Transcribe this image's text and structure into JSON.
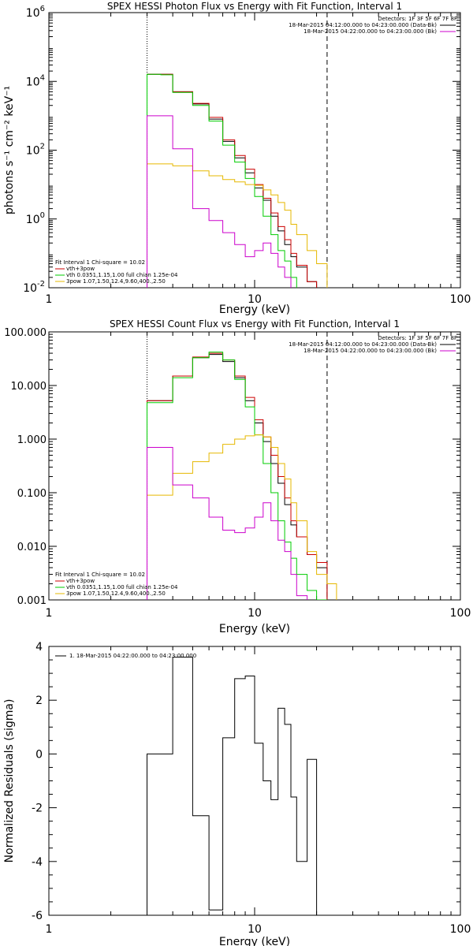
{
  "chart_data": [
    {
      "type": "line",
      "title": "SPEX HESSI Photon Flux vs Energy with Fit Function, Interval 1",
      "xlabel": "Energy (keV)",
      "ylabel": "photons s⁻¹ cm⁻² keV⁻¹",
      "xscale": "log",
      "yscale": "log",
      "xlim": [
        1,
        100
      ],
      "ylim": [
        0.01,
        1000000
      ],
      "xticks": [
        {
          "v": 1,
          "label": "1"
        },
        {
          "v": 10,
          "label": "10"
        },
        {
          "v": 100,
          "label": "100"
        }
      ],
      "yticks": [
        {
          "v": 0.01,
          "base": "10",
          "exp": "-2"
        },
        {
          "v": 1,
          "base": "10",
          "exp": "0"
        },
        {
          "v": 100,
          "base": "10",
          "exp": "2"
        },
        {
          "v": 10000,
          "base": "10",
          "exp": "4"
        },
        {
          "v": 1000000,
          "base": "10",
          "exp": "6"
        }
      ],
      "vlines": [
        {
          "x": 3.0,
          "style": "dotted"
        },
        {
          "x": 22.5,
          "style": "dashed"
        }
      ],
      "legend_top": [
        "Detectors: 1F 3F 5F 6F 7F 8F",
        "18-Mar-2015 04:12:00.000 to 04:23:00.000 (Data-Bk)",
        "18-Mar-2015 04:22:00.000 to 04:23:00.000 (Bk)"
      ],
      "legend_bottom_header": "Fit Interval 1    Chi-square = 10.02",
      "legend_bottom": [
        "vth+3pow",
        "vth 0.0351,1.15,1.00  full chian 1.25e-04",
        "3pow 1.07,1.50,12.4,9.60,400.,2.50"
      ],
      "edges": [
        3.0,
        3.5,
        4.0,
        5.0,
        6.0,
        7.0,
        8.0,
        9.0,
        10.0,
        11.0,
        12.0,
        13.0,
        14.0,
        15.0,
        16.0,
        18.0,
        20.0,
        22.5,
        25.0
      ],
      "series": [
        {
          "name": "Data-Bk",
          "color": "#000000",
          "values": [
            16000,
            16000,
            5000,
            2200,
            800,
            180,
            60,
            22,
            8,
            3.5,
            1.2,
            0.45,
            0.18,
            0.08,
            0.04,
            0.015,
            0.004,
            null
          ]
        },
        {
          "name": "vth+3pow",
          "color": "#cc0000",
          "values": [
            16000,
            16000,
            5000,
            2300,
            900,
            200,
            70,
            28,
            10,
            4.0,
            1.5,
            0.6,
            0.25,
            0.1,
            0.045,
            0.015,
            0.006,
            null
          ]
        },
        {
          "name": "vth",
          "color": "#00cc00",
          "values": [
            16000,
            15500,
            4800,
            2000,
            700,
            140,
            45,
            15,
            4.5,
            1.2,
            0.35,
            0.12,
            0.06,
            0.02,
            0.008,
            0.004,
            null,
            null
          ]
        },
        {
          "name": "3pow",
          "color": "#e6b800",
          "values": [
            40,
            40,
            35,
            25,
            18,
            14,
            12,
            10,
            9.5,
            7.0,
            5.0,
            3.0,
            1.8,
            0.7,
            0.35,
            0.12,
            0.05,
            0.009
          ]
        },
        {
          "name": "Bk",
          "color": "#cc00cc",
          "values": [
            1000,
            1000,
            110,
            2.0,
            0.9,
            0.4,
            0.18,
            0.08,
            0.12,
            0.2,
            0.1,
            0.04,
            0.02,
            0.008,
            null,
            null,
            null,
            null
          ]
        }
      ]
    },
    {
      "type": "line",
      "title": "SPEX HESSI Count Flux vs Energy with Fit Function, Interval 1",
      "xlabel": "Energy (keV)",
      "ylabel": "",
      "xscale": "log",
      "yscale": "log",
      "xlim": [
        1,
        100
      ],
      "ylim": [
        0.001,
        100
      ],
      "xticks": [
        {
          "v": 1,
          "label": "1"
        },
        {
          "v": 10,
          "label": "10"
        },
        {
          "v": 100,
          "label": "100"
        }
      ],
      "yticks": [
        {
          "v": 0.001,
          "label": "0.001"
        },
        {
          "v": 0.01,
          "label": "0.010"
        },
        {
          "v": 0.1,
          "label": "0.100"
        },
        {
          "v": 1,
          "label": "1.000"
        },
        {
          "v": 10,
          "label": "10.000"
        },
        {
          "v": 100,
          "label": "100.000"
        }
      ],
      "vlines": [
        {
          "x": 3.0,
          "style": "dotted"
        },
        {
          "x": 22.5,
          "style": "dashed"
        }
      ],
      "legend_top": [
        "Detectors: 1F 3F 5F 6F 7F 8F",
        "18-Mar-2015 04:12:00.000 to 04:23:00.000 (Data-Bk)",
        "18-Mar-2015 04:22:00.000 to 04:23:00.000 (Bk)"
      ],
      "legend_bottom_header": "Fit Interval 1    Chi-square = 10.02",
      "legend_bottom": [
        "vth+3pow",
        "vth 0.0351,1.15,1.00  full chian 1.25e-04",
        "3pow 1.07,1.50,12.4,9.60,400.,2.50"
      ],
      "edges": [
        3.0,
        3.5,
        4.0,
        5.0,
        6.0,
        7.0,
        8.0,
        9.0,
        10.0,
        11.0,
        12.0,
        13.0,
        14.0,
        15.0,
        16.0,
        18.0,
        20.0,
        22.5,
        25.0
      ],
      "series": [
        {
          "name": "Data-Bk",
          "color": "#000000",
          "values": [
            5.2,
            5.2,
            15,
            33,
            38,
            28,
            14,
            5.2,
            2.0,
            0.9,
            0.35,
            0.15,
            0.06,
            0.025,
            0.015,
            0.007,
            0.004,
            null
          ]
        },
        {
          "name": "vth+3pow",
          "color": "#cc0000",
          "values": [
            5.2,
            5.2,
            15,
            34,
            40,
            30,
            15,
            6.0,
            2.3,
            1.1,
            0.5,
            0.2,
            0.08,
            0.03,
            0.015,
            0.007,
            0.005,
            null
          ]
        },
        {
          "name": "vth",
          "color": "#00cc00",
          "values": [
            4.8,
            4.8,
            14,
            33,
            42,
            30,
            13,
            4.0,
            1.2,
            0.35,
            0.1,
            0.03,
            0.012,
            0.006,
            0.003,
            0.0015,
            0.001,
            null
          ]
        },
        {
          "name": "3pow",
          "color": "#e6b800",
          "values": [
            0.09,
            0.09,
            0.23,
            0.38,
            0.55,
            0.8,
            1.0,
            1.15,
            1.2,
            1.1,
            0.7,
            0.35,
            0.18,
            0.065,
            0.03,
            0.008,
            0.003,
            0.002
          ]
        },
        {
          "name": "Bk",
          "color": "#cc00cc",
          "values": [
            0.7,
            0.7,
            0.14,
            0.08,
            0.035,
            0.02,
            0.018,
            0.022,
            0.035,
            0.065,
            0.03,
            0.013,
            0.008,
            0.003,
            0.0012,
            null,
            null,
            null
          ]
        }
      ]
    },
    {
      "type": "line",
      "title": "",
      "xlabel": "Energy (keV)",
      "ylabel": "Normalized Residuals (sigma)",
      "xscale": "log",
      "yscale": "linear",
      "xlim": [
        1,
        100
      ],
      "ylim": [
        -6,
        4
      ],
      "xticks": [
        {
          "v": 1,
          "label": "1"
        },
        {
          "v": 10,
          "label": "10"
        },
        {
          "v": 100,
          "label": "100"
        }
      ],
      "yticks": [
        {
          "v": -6,
          "label": "-6"
        },
        {
          "v": -4,
          "label": "-4"
        },
        {
          "v": -2,
          "label": "-2"
        },
        {
          "v": 0,
          "label": "0"
        },
        {
          "v": 2,
          "label": "2"
        },
        {
          "v": 4,
          "label": "4"
        }
      ],
      "legend_top": [
        "1. 18-Mar-2015 04:22:00.000 to 04:23:00.000"
      ],
      "edges": [
        3.0,
        4.0,
        5.0,
        6.0,
        7.0,
        8.0,
        9.0,
        10.0,
        11.0,
        12.0,
        13.0,
        14.0,
        15.0,
        16.0,
        18.0,
        20.0,
        22.5
      ],
      "series": [
        {
          "name": "1. 18-Mar-2015 04:22:00.000 to 04:23:00.000",
          "color": "#000000",
          "values": [
            0.0,
            3.6,
            -2.3,
            -5.8,
            0.6,
            2.8,
            2.9,
            0.4,
            -1.0,
            -1.7,
            1.7,
            1.1,
            -1.6,
            -4.0,
            -0.2,
            -6.2
          ]
        }
      ]
    }
  ]
}
